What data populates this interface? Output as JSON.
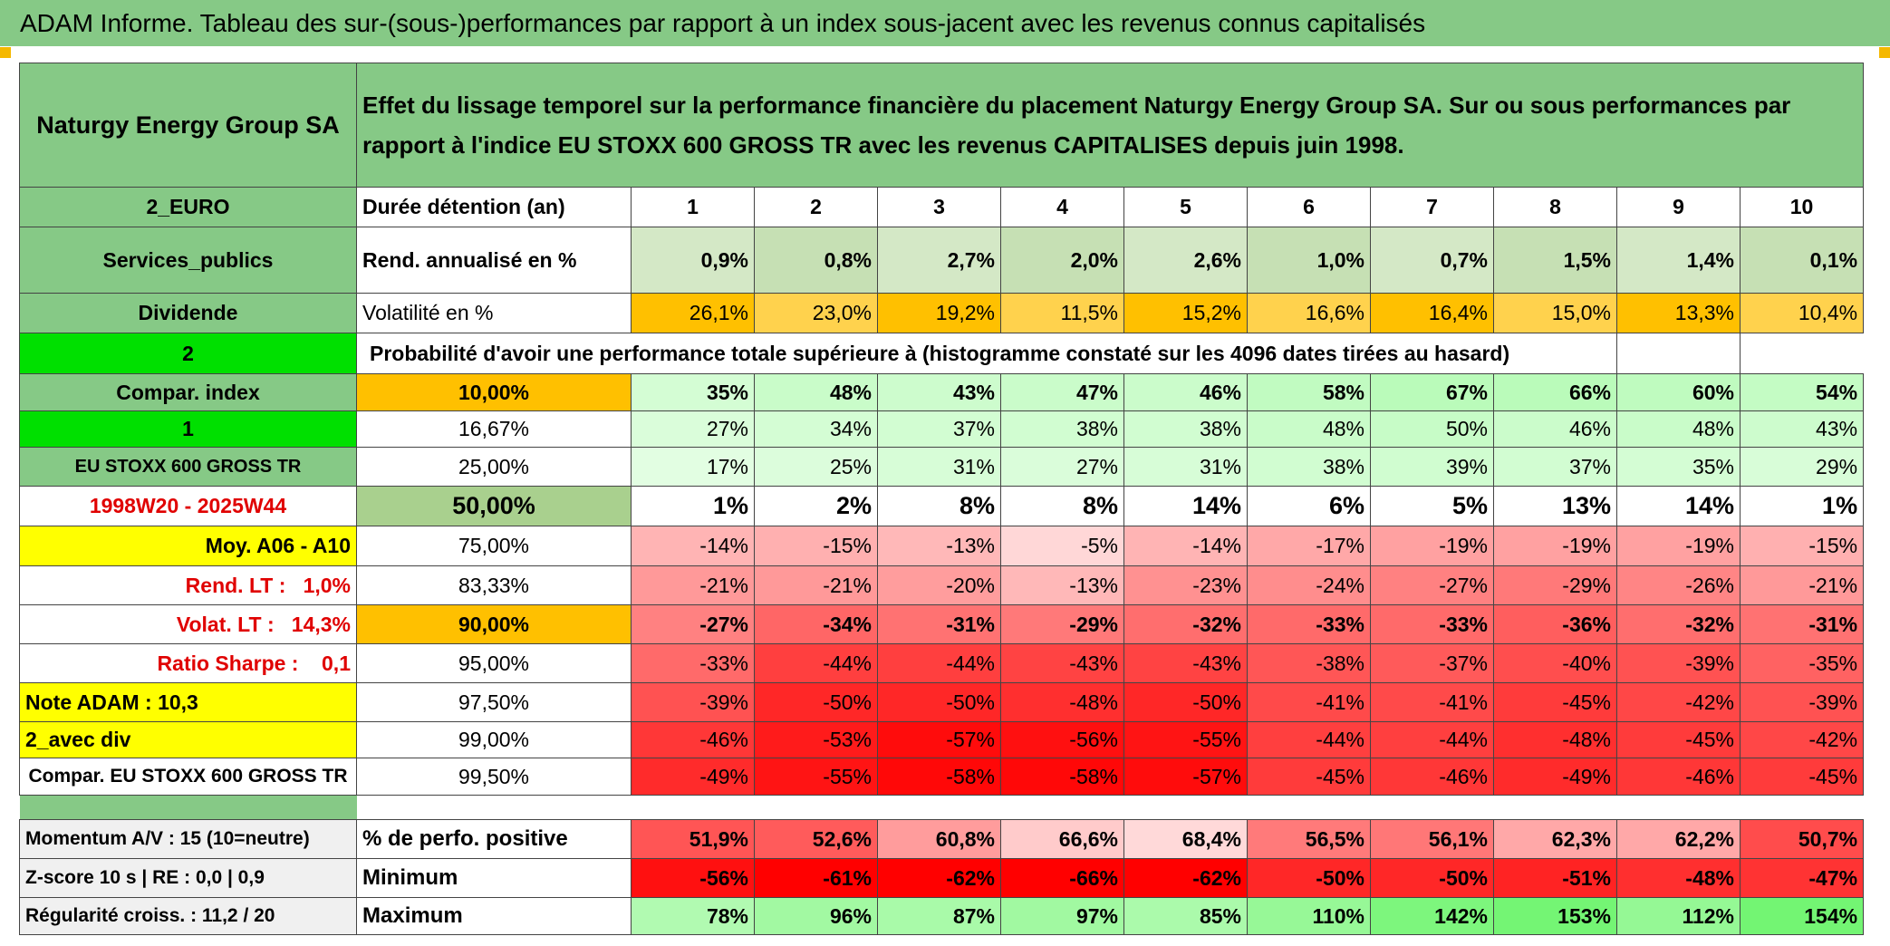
{
  "title": "ADAM Informe. Tableau des sur-(sous-)performances par rapport à un index sous-jacent avec les revenus connus capitalisés",
  "header": {
    "name": "Naturgy Energy Group SA",
    "description": "Effet du lissage temporel sur la performance financière du placement Naturgy Energy Group SA. Sur ou sous performances par rapport à l'indice EU STOXX 600 GROSS TR avec les revenus CAPITALISES depuis juin 1998."
  },
  "table": {
    "rows": [
      [
        "2_EURO",
        "Durée détention (an)",
        "1",
        "2",
        "3",
        "4",
        "5",
        "6",
        "7",
        "8",
        "9",
        "10"
      ],
      [
        "Services_publics",
        "Rend. annualisé en %",
        "0,9%",
        "0,8%",
        "2,7%",
        "2,0%",
        "2,6%",
        "1,0%",
        "0,7%",
        "1,5%",
        "1,4%",
        "0,1%"
      ],
      [
        "Dividende",
        "Volatilité en %",
        "26,1%",
        "23,0%",
        "19,2%",
        "11,5%",
        "15,2%",
        "16,6%",
        "16,4%",
        "15,0%",
        "13,3%",
        "10,4%"
      ],
      [
        "2",
        "Probabilité d'avoir une performance totale supérieure à (histogramme constaté sur les 4096 dates tirées au hasard)"
      ],
      [
        "Compar. index",
        "10,00%",
        "35%",
        "48%",
        "43%",
        "47%",
        "46%",
        "58%",
        "67%",
        "66%",
        "60%",
        "54%"
      ],
      [
        "1",
        "16,67%",
        "27%",
        "34%",
        "37%",
        "38%",
        "38%",
        "48%",
        "50%",
        "46%",
        "48%",
        "43%"
      ],
      [
        "EU STOXX 600 GROSS TR",
        "25,00%",
        "17%",
        "25%",
        "31%",
        "27%",
        "31%",
        "38%",
        "39%",
        "37%",
        "35%",
        "29%"
      ],
      [
        "1998W20 - 2025W44",
        "50,00%",
        "1%",
        "2%",
        "8%",
        "8%",
        "14%",
        "6%",
        "5%",
        "13%",
        "14%",
        "1%"
      ],
      [
        "Moy. A06 - A10",
        "75,00%",
        "-14%",
        "-15%",
        "-13%",
        "-5%",
        "-14%",
        "-17%",
        "-19%",
        "-19%",
        "-19%",
        "-15%"
      ],
      [
        "Rend. LT :   1,0%",
        "83,33%",
        "-21%",
        "-21%",
        "-20%",
        "-13%",
        "-23%",
        "-24%",
        "-27%",
        "-29%",
        "-26%",
        "-21%"
      ],
      [
        "Volat. LT :   14,3%",
        "90,00%",
        "-27%",
        "-34%",
        "-31%",
        "-29%",
        "-32%",
        "-33%",
        "-33%",
        "-36%",
        "-32%",
        "-31%"
      ],
      [
        "Ratio Sharpe :    0,1",
        "95,00%",
        "-33%",
        "-44%",
        "-44%",
        "-43%",
        "-43%",
        "-38%",
        "-37%",
        "-40%",
        "-39%",
        "-35%"
      ],
      [
        "Note ADAM : 10,3",
        "97,50%",
        "-39%",
        "-50%",
        "-50%",
        "-48%",
        "-50%",
        "-41%",
        "-41%",
        "-45%",
        "-42%",
        "-39%"
      ],
      [
        "2_avec div",
        "99,00%",
        "-46%",
        "-53%",
        "-57%",
        "-56%",
        "-55%",
        "-44%",
        "-44%",
        "-48%",
        "-45%",
        "-42%"
      ],
      [
        "Compar. EU STOXX 600 GROSS TR",
        "99,50%",
        "-49%",
        "-55%",
        "-58%",
        "-58%",
        "-57%",
        "-45%",
        "-46%",
        "-49%",
        "-46%",
        "-45%"
      ]
    ]
  },
  "footer": {
    "rows": [
      [
        "Momentum A/V : 15 (10=neutre)",
        "% de perfo. positive",
        "51,9%",
        "52,6%",
        "60,8%",
        "66,6%",
        "68,4%",
        "56,5%",
        "56,1%",
        "62,3%",
        "62,2%",
        "50,7%"
      ],
      [
        "Z-score 10 s | RE : 0,0 | 0,9",
        "Minimum",
        "-56%",
        "-61%",
        "-62%",
        "-66%",
        "-62%",
        "-50%",
        "-50%",
        "-51%",
        "-48%",
        "-47%"
      ],
      [
        "Régularité croiss. : 11,2 / 20",
        "Maximum",
        "78%",
        "96%",
        "87%",
        "97%",
        "85%",
        "110%",
        "142%",
        "153%",
        "112%",
        "154%"
      ]
    ]
  }
}
